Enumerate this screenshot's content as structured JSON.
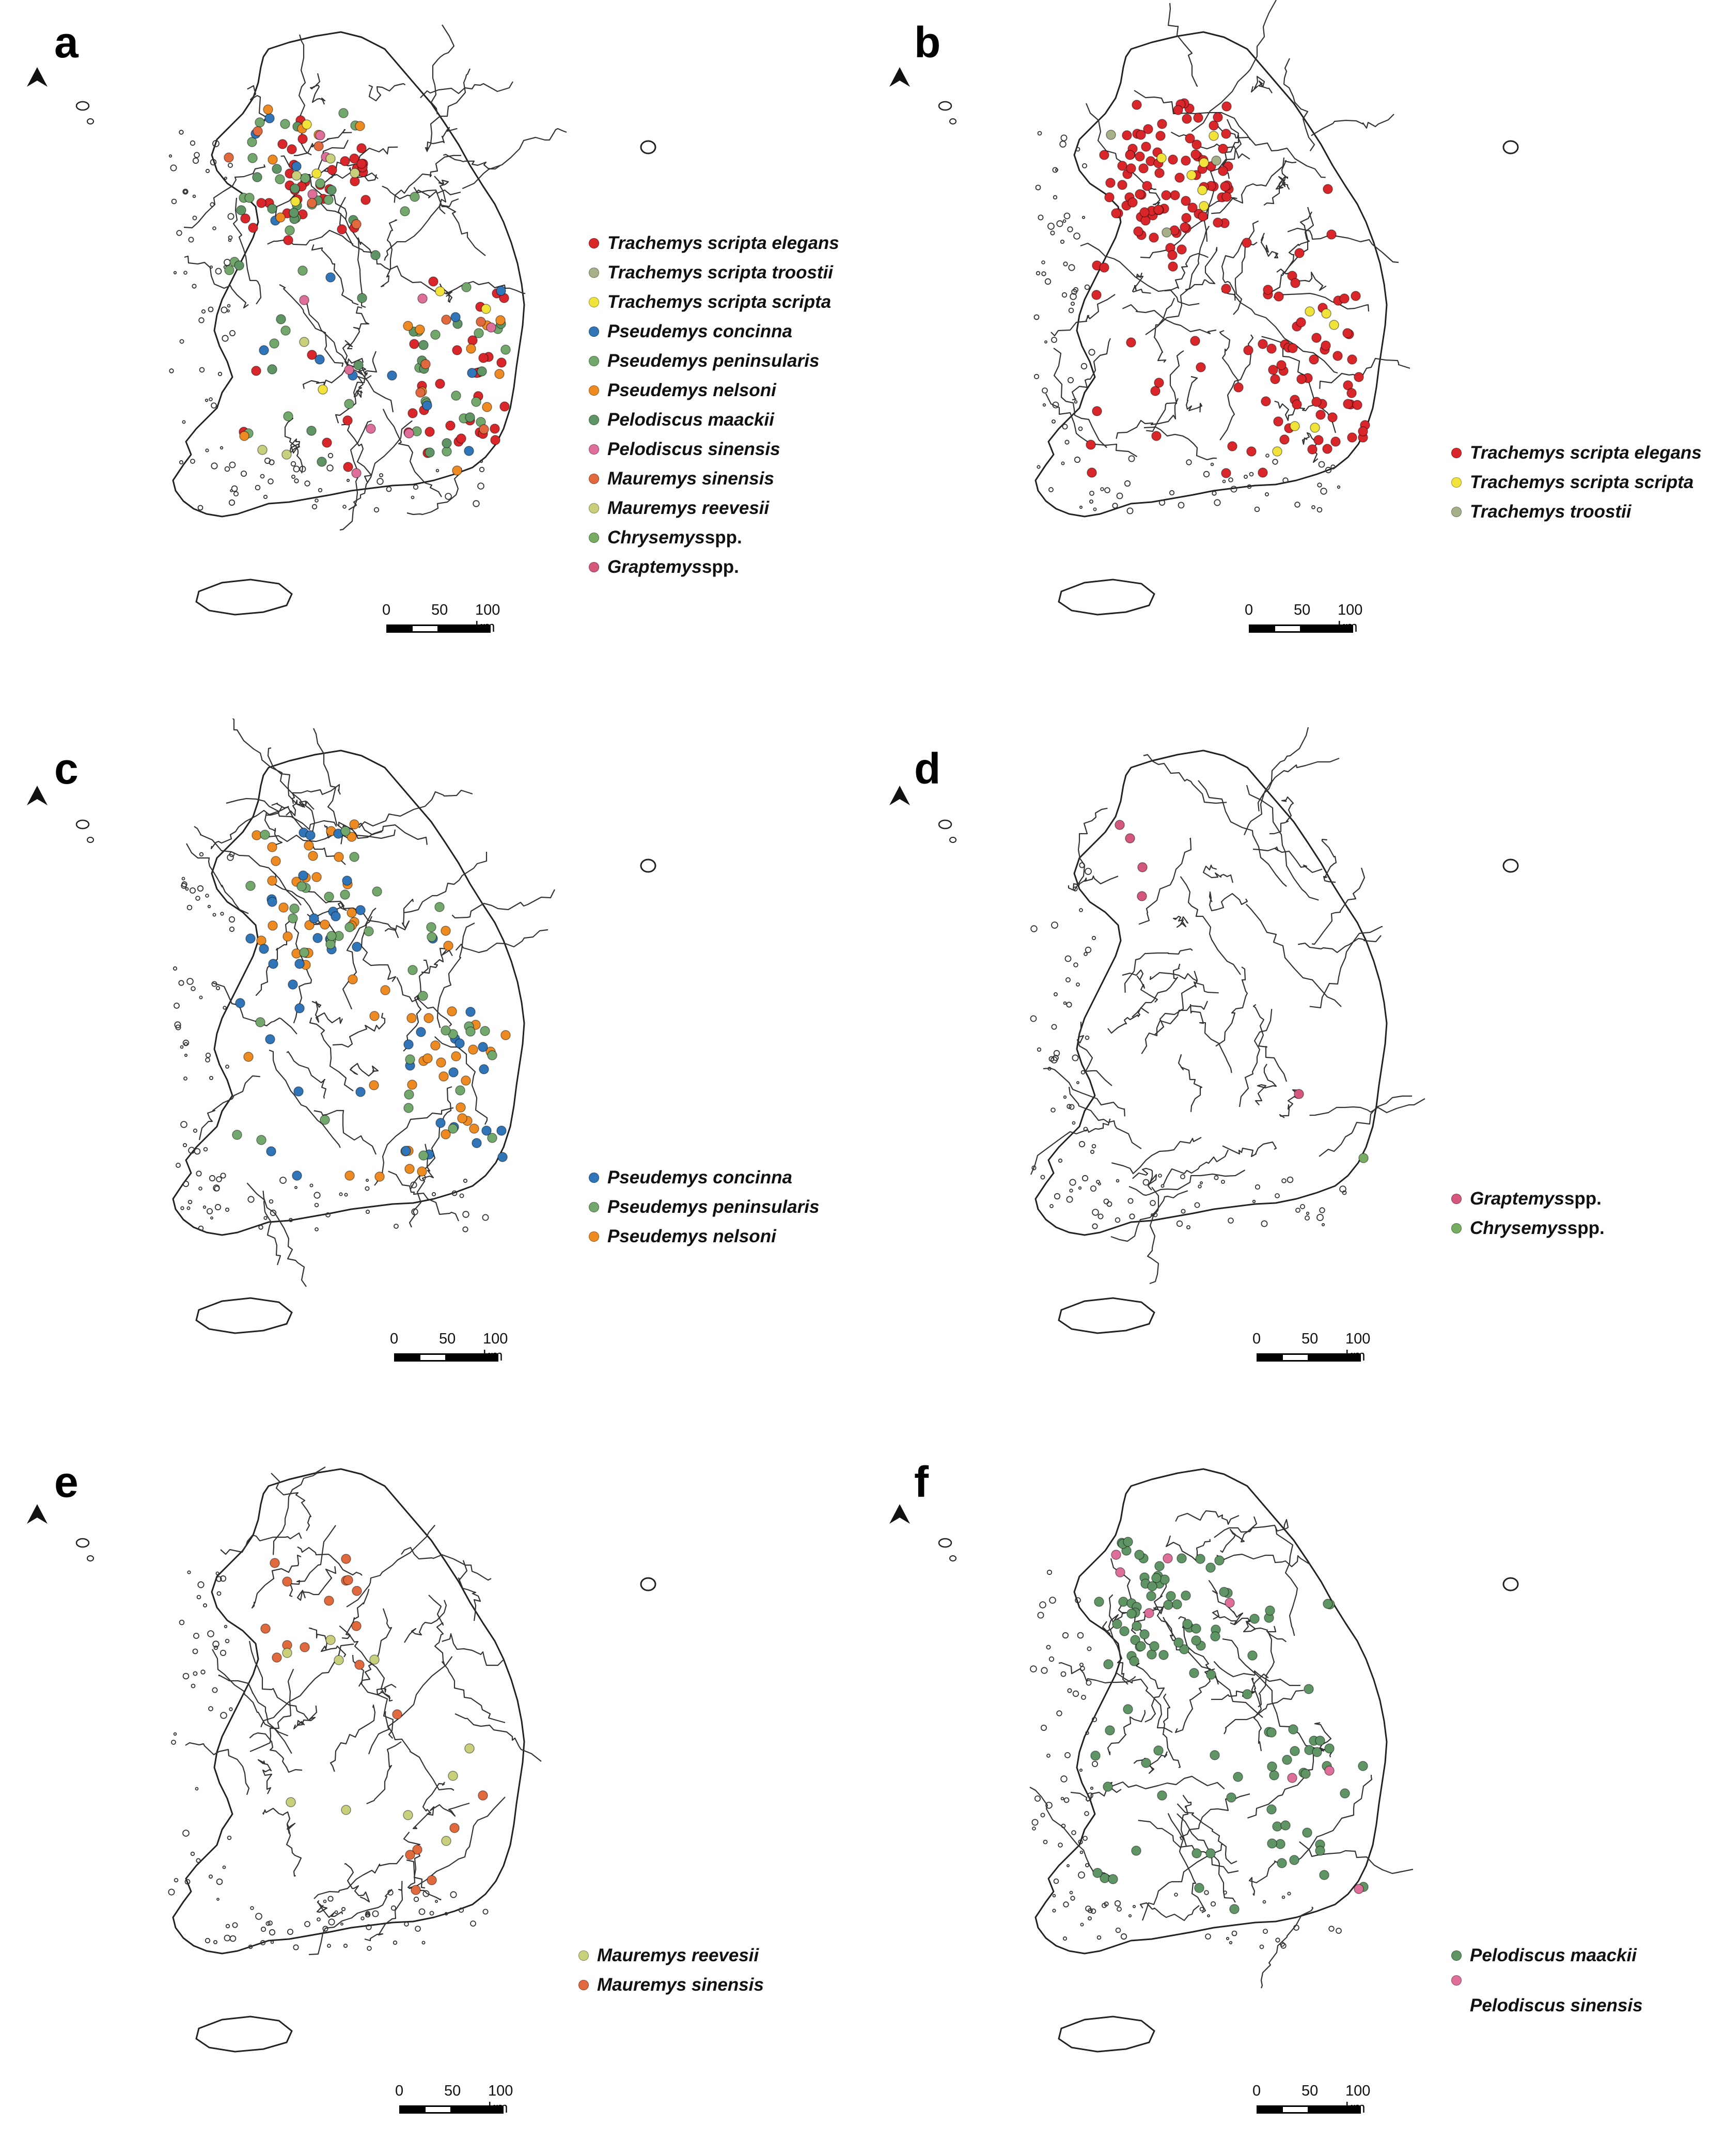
{
  "scale": {
    "ticks": [
      "0",
      "50",
      "100 km"
    ]
  },
  "colors": {
    "tse": "#d9262b",
    "tst": "#a6b089",
    "tss": "#f2e33a",
    "pc": "#2f75b7",
    "pp": "#73a86c",
    "pn": "#ee8a22",
    "pm": "#5f9564",
    "ps": "#dd6f9a",
    "ms": "#e06a3e",
    "mr": "#c8d07c",
    "chr": "#77ad63",
    "gra": "#d4577c"
  },
  "panels": [
    {
      "label": "a",
      "legend": [
        {
          "genus": "Trachemys scripta elegans",
          "suffix": "",
          "color": "#d9262b"
        },
        {
          "genus": "Trachemys scripta troostii",
          "suffix": "",
          "color": "#a6b089"
        },
        {
          "genus": "Trachemys scripta scripta",
          "suffix": "",
          "color": "#f2e33a"
        },
        {
          "genus": "Pseudemys concinna",
          "suffix": "",
          "color": "#2f75b7"
        },
        {
          "genus": "Pseudemys peninsularis",
          "suffix": "",
          "color": "#73a86c"
        },
        {
          "genus": "Pseudemys nelsoni",
          "suffix": "",
          "color": "#ee8a22"
        },
        {
          "genus": "Pelodiscus maackii",
          "suffix": "",
          "color": "#5f9564"
        },
        {
          "genus": "Pelodiscus sinensis",
          "suffix": "",
          "color": "#dd6f9a"
        },
        {
          "genus": "Mauremys sinensis",
          "suffix": "",
          "color": "#e06a3e"
        },
        {
          "genus": "Mauremys reevesii",
          "suffix": "",
          "color": "#c8d07c"
        },
        {
          "genus": "Chrysemys",
          "suffix": " spp.",
          "color": "#77ad63"
        },
        {
          "genus": "Graptemys",
          "suffix": " spp.",
          "color": "#d4577c"
        }
      ],
      "dots": [
        {
          "color": "#d9262b",
          "n": 70
        },
        {
          "color": "#73a86c",
          "n": 40
        },
        {
          "color": "#5f9564",
          "n": 30
        },
        {
          "color": "#2f75b7",
          "n": 14
        },
        {
          "color": "#ee8a22",
          "n": 16
        },
        {
          "color": "#dd6f9a",
          "n": 10
        },
        {
          "color": "#f2e33a",
          "n": 6
        },
        {
          "color": "#e06a3e",
          "n": 10
        },
        {
          "color": "#c8d07c",
          "n": 6
        }
      ]
    },
    {
      "label": "b",
      "legend": [
        {
          "genus": "Trachemys scripta elegans",
          "suffix": "",
          "color": "#d9262b"
        },
        {
          "genus": "Trachemys scripta scripta",
          "suffix": "",
          "color": "#f2e33a"
        },
        {
          "genus": "Trachemys troostii",
          "suffix": "",
          "color": "#a6b089"
        }
      ],
      "dots": [
        {
          "color": "#d9262b",
          "n": 170
        },
        {
          "color": "#f2e33a",
          "n": 12
        },
        {
          "color": "#a6b089",
          "n": 3
        }
      ]
    },
    {
      "label": "c",
      "legend": [
        {
          "genus": "Pseudemys concinna",
          "suffix": "",
          "color": "#2f75b7"
        },
        {
          "genus": "Pseudemys peninsularis",
          "suffix": "",
          "color": "#73a86c"
        },
        {
          "genus": "Pseudemys nelsoni",
          "suffix": "",
          "color": "#ee8a22"
        }
      ],
      "dots": [
        {
          "color": "#ee8a22",
          "n": 60
        },
        {
          "color": "#2f75b7",
          "n": 45
        },
        {
          "color": "#73a86c",
          "n": 40
        }
      ]
    },
    {
      "label": "d",
      "legend": [
        {
          "genus": "Graptemys",
          "suffix": " spp.",
          "color": "#d4577c"
        },
        {
          "genus": "Chrysemys",
          "suffix": " spp.",
          "color": "#77ad63"
        }
      ],
      "dots": [
        {
          "color": "#d4577c",
          "n": 5
        },
        {
          "color": "#77ad63",
          "n": 1
        }
      ]
    },
    {
      "label": "e",
      "legend": [
        {
          "genus": "Mauremys reevesii",
          "suffix": "",
          "color": "#c8d07c"
        },
        {
          "genus": "Mauremys sinensis",
          "suffix": "",
          "color": "#e06a3e"
        }
      ],
      "dots": [
        {
          "color": "#e06a3e",
          "n": 20
        },
        {
          "color": "#c8d07c",
          "n": 10
        }
      ]
    },
    {
      "label": "f",
      "legend": [
        {
          "genus": "Pelodiscus maackii",
          "suffix": "",
          "color": "#5f9564"
        },
        {
          "genus": "Pelodiscus sinensis",
          "suffix": "",
          "color": "#dd6f9a"
        }
      ],
      "dots": [
        {
          "color": "#5f9564",
          "n": 110
        },
        {
          "color": "#dd6f9a",
          "n": 8
        }
      ]
    }
  ]
}
